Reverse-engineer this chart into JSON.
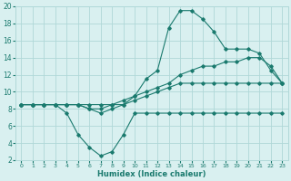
{
  "xlabel": "Humidex (Indice chaleur)",
  "x": [
    0,
    1,
    2,
    3,
    4,
    5,
    6,
    7,
    8,
    9,
    10,
    11,
    12,
    13,
    14,
    15,
    16,
    17,
    18,
    19,
    20,
    21,
    22,
    23
  ],
  "curve_min": [
    8.5,
    8.5,
    8.5,
    8.5,
    7.5,
    5.0,
    3.5,
    2.5,
    3.0,
    5.0,
    7.5,
    7.5,
    7.5,
    7.5,
    7.5,
    7.5,
    7.5,
    7.5,
    7.5,
    7.5,
    7.5,
    7.5,
    7.5,
    7.5
  ],
  "curve_max": [
    8.5,
    8.5,
    8.5,
    8.5,
    8.5,
    8.5,
    8.5,
    8.5,
    8.5,
    8.5,
    9.5,
    11.5,
    12.5,
    17.5,
    19.5,
    19.5,
    18.5,
    17.0,
    15.0,
    15.0,
    15.0,
    14.5,
    12.5,
    11.0
  ],
  "curve_avg": [
    8.5,
    8.5,
    8.5,
    8.5,
    8.5,
    8.5,
    8.0,
    8.0,
    8.5,
    9.0,
    9.5,
    10.0,
    10.5,
    11.0,
    12.0,
    12.5,
    13.0,
    13.0,
    13.5,
    13.5,
    14.0,
    14.0,
    13.0,
    11.0
  ],
  "curve_straight": [
    8.5,
    8.5,
    8.5,
    8.5,
    8.5,
    8.5,
    8.0,
    7.5,
    8.0,
    8.5,
    9.0,
    9.5,
    10.0,
    10.5,
    11.0,
    11.0,
    11.0,
    11.0,
    11.0,
    11.0,
    11.0,
    11.0,
    11.0,
    11.0
  ],
  "color": "#1a7a6e",
  "bg_color": "#d9f0f0",
  "grid_color": "#b0d8d8",
  "ylim": [
    2,
    20
  ],
  "xlim": [
    -0.5,
    23.5
  ],
  "yticks": [
    2,
    4,
    6,
    8,
    10,
    12,
    14,
    16,
    18,
    20
  ],
  "xticks": [
    0,
    1,
    2,
    3,
    4,
    5,
    6,
    7,
    8,
    9,
    10,
    11,
    12,
    13,
    14,
    15,
    16,
    17,
    18,
    19,
    20,
    21,
    22,
    23
  ]
}
